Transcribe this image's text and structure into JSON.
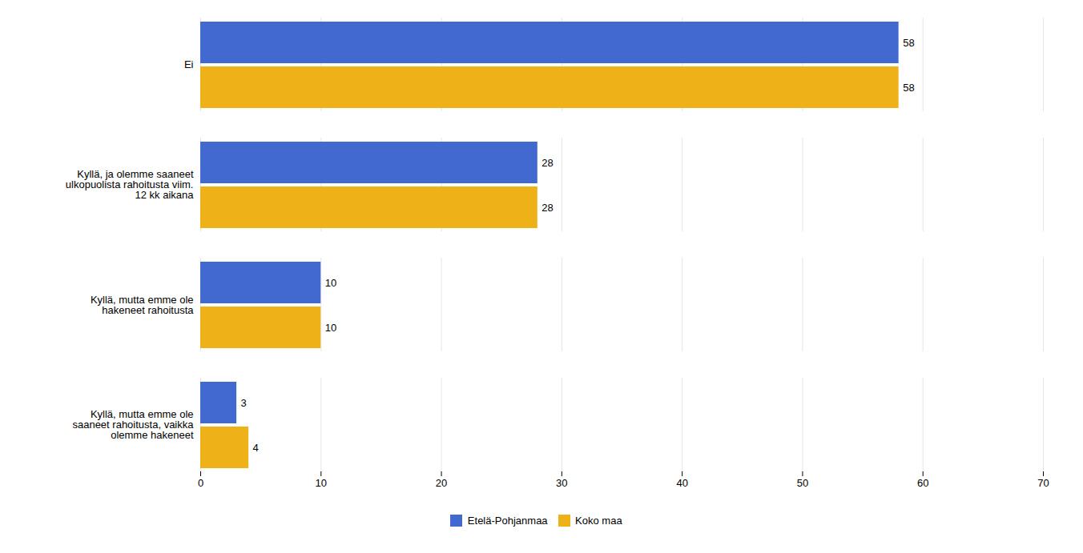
{
  "chart_data": {
    "type": "bar",
    "orientation": "horizontal",
    "categories": [
      "Ei",
      "Kyllä, ja olemme saaneet\nulkopuolista rahoitusta viim.\n12 kk aikana",
      "Kyllä, mutta emme ole\nhakeneet rahoitusta",
      "Kyllä, mutta emme ole\nsaaneet rahoitusta, vaikka\nolemme hakeneet"
    ],
    "series": [
      {
        "name": "Etelä-Pohjanmaa",
        "values": [
          58,
          28,
          10,
          3
        ]
      },
      {
        "name": "Koko maa",
        "values": [
          58,
          28,
          10,
          4
        ]
      }
    ],
    "xlim": [
      0,
      70
    ],
    "xticks": [
      0,
      10,
      20,
      30,
      40,
      50,
      60,
      70
    ],
    "grid": true,
    "data_labels": true,
    "legend": "bottom"
  }
}
